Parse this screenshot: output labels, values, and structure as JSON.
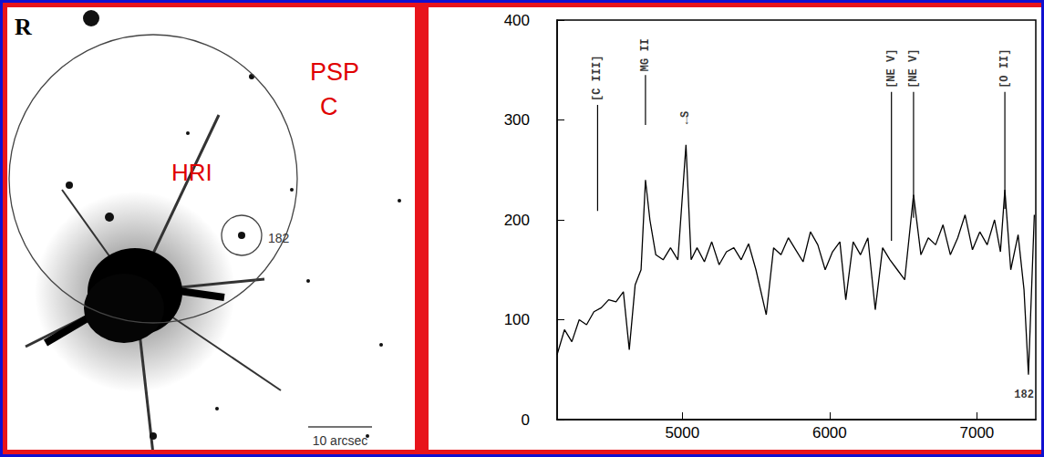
{
  "image_panel": {
    "band_label": "R",
    "pspc_label": [
      "PSP",
      "C"
    ],
    "hri_label": "HRI",
    "source_label": "182",
    "scale_bar": "10 arcsec"
  },
  "chart_data": {
    "type": "line",
    "color": "#000000",
    "grid": false,
    "x": [
      4150,
      4200,
      4250,
      4300,
      4350,
      4400,
      4450,
      4500,
      4550,
      4600,
      4640,
      4680,
      4720,
      4750,
      4780,
      4820,
      4870,
      4920,
      4970,
      5025,
      5060,
      5100,
      5150,
      5200,
      5250,
      5300,
      5350,
      5400,
      5450,
      5500,
      5570,
      5620,
      5670,
      5720,
      5770,
      5820,
      5870,
      5920,
      5970,
      6020,
      6070,
      6110,
      6160,
      6210,
      6260,
      6310,
      6360,
      6410,
      6460,
      6510,
      6570,
      6620,
      6670,
      6720,
      6770,
      6820,
      6870,
      6920,
      6970,
      7020,
      7070,
      7120,
      7160,
      7190,
      7230,
      7280,
      7320,
      7350,
      7390
    ],
    "values": [
      65,
      90,
      78,
      100,
      95,
      108,
      112,
      120,
      118,
      128,
      70,
      135,
      150,
      240,
      200,
      165,
      160,
      172,
      160,
      275,
      160,
      172,
      158,
      178,
      155,
      168,
      172,
      160,
      176,
      150,
      105,
      172,
      165,
      182,
      170,
      158,
      188,
      175,
      150,
      168,
      178,
      120,
      178,
      165,
      182,
      110,
      172,
      160,
      150,
      140,
      225,
      165,
      182,
      175,
      195,
      165,
      182,
      205,
      170,
      188,
      175,
      200,
      168,
      230,
      150,
      185,
      130,
      45,
      205
    ],
    "xlim": [
      4150,
      7400
    ],
    "ylim": [
      0,
      400
    ],
    "xticks": [
      5000,
      6000,
      7000
    ],
    "yticks": [
      0,
      100,
      200,
      300,
      400
    ],
    "annotations": [
      {
        "label": "[C III]",
        "x": 4425,
        "y_from": 209,
        "y_to": 315
      },
      {
        "label": "MG II",
        "x": 4750,
        "y_from": 295,
        "y_to": 345
      },
      {
        "label": "←S",
        "x": 5025,
        "y_from": 292,
        "y_to": 292
      },
      {
        "label": "[NE V]",
        "x": 6420,
        "y_from": 179,
        "y_to": 328
      },
      {
        "label": "[NE V]",
        "x": 6570,
        "y_from": 202,
        "y_to": 328
      },
      {
        "label": "[O II]",
        "x": 7190,
        "y_from": 211,
        "y_to": 328
      },
      {
        "label": "182",
        "x": 7320,
        "y": 25
      }
    ]
  }
}
